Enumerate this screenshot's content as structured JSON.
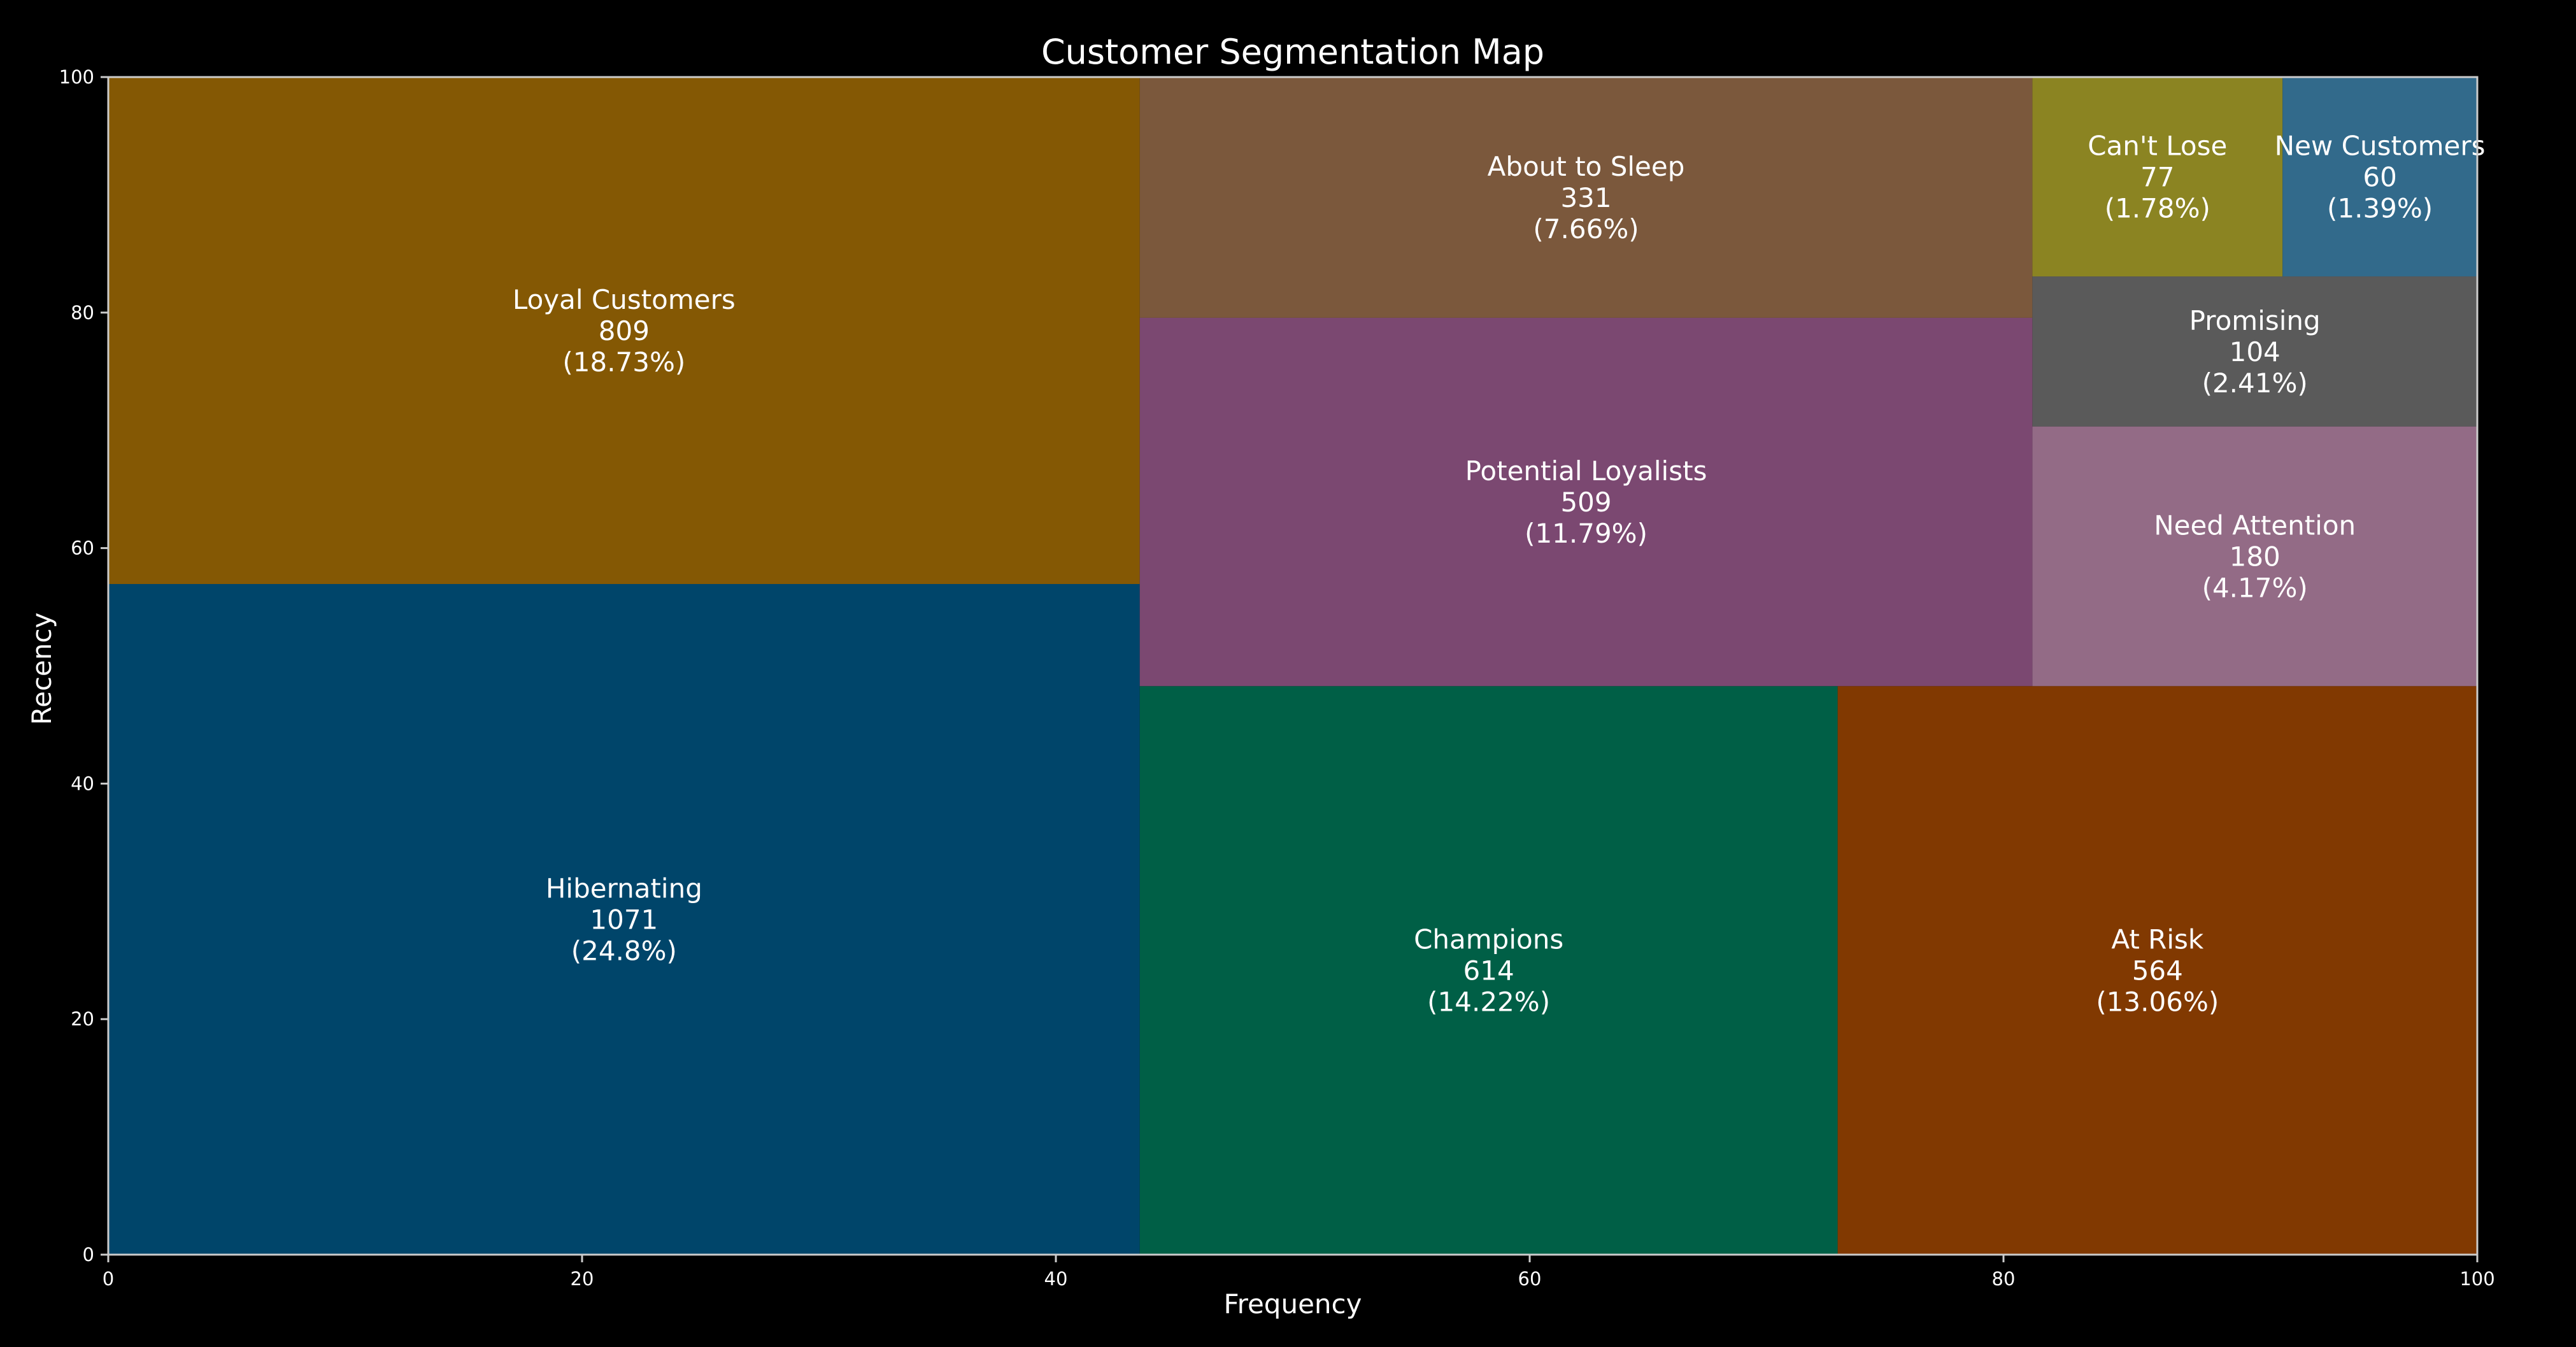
{
  "chart_data": {
    "type": "treemap",
    "title": "Customer Segmentation Map",
    "xlabel": "Frequency",
    "ylabel": "Recency",
    "xlim": [
      0,
      100
    ],
    "ylim": [
      0,
      100
    ],
    "xticks": [
      "0",
      "20",
      "40",
      "60",
      "80",
      "100"
    ],
    "yticks": [
      "0",
      "20",
      "40",
      "60",
      "80",
      "100"
    ],
    "grid": false,
    "segments": [
      {
        "label": "Hibernating",
        "value": "1071",
        "percent": "(24.8%)",
        "x0": 0,
        "x1": 43.54,
        "y0": 0,
        "y1": 56.95,
        "color": "#00456a"
      },
      {
        "label": "Loyal Customers",
        "value": "809",
        "percent": "(18.73%)",
        "x0": 0,
        "x1": 43.54,
        "y0": 56.95,
        "y1": 100,
        "color": "#845804"
      },
      {
        "label": "Champions",
        "value": "614",
        "percent": "(14.22%)",
        "x0": 43.54,
        "x1": 73.0,
        "y0": 0,
        "y1": 48.28,
        "color": "#005f46"
      },
      {
        "label": "At Risk",
        "value": "564",
        "percent": "(13.06%)",
        "x0": 73.0,
        "x1": 100,
        "y0": 0,
        "y1": 48.28,
        "color": "#813901"
      },
      {
        "label": "Potential Loyalists",
        "value": "509",
        "percent": "(11.79%)",
        "x0": 43.54,
        "x1": 81.22,
        "y0": 48.28,
        "y1": 79.56,
        "color": "#7b4871"
      },
      {
        "label": "About to Sleep",
        "value": "331",
        "percent": "(7.66%)",
        "x0": 43.54,
        "x1": 81.22,
        "y0": 79.56,
        "y1": 100,
        "color": "#7b583c"
      },
      {
        "label": "Need Attention",
        "value": "180",
        "percent": "(4.17%)",
        "x0": 81.22,
        "x1": 100,
        "y0": 48.28,
        "y1": 70.33,
        "color": "#936b86"
      },
      {
        "label": "Promising",
        "value": "104",
        "percent": "(2.41%)",
        "x0": 81.22,
        "x1": 100,
        "y0": 70.33,
        "y1": 83.07,
        "color": "#5a5a5a"
      },
      {
        "label": "Can't Lose",
        "value": "77",
        "percent": "(1.78%)",
        "x0": 81.22,
        "x1": 91.78,
        "y0": 83.07,
        "y1": 100,
        "color": "#8b8422"
      },
      {
        "label": "New Customers",
        "value": "60",
        "percent": "(1.39%)",
        "x0": 91.78,
        "x1": 100,
        "y0": 83.07,
        "y1": 100,
        "color": "#326a8b"
      }
    ],
    "colors": {
      "background": "#000000",
      "axes": "#cccccc",
      "text": "#ffffff"
    }
  }
}
